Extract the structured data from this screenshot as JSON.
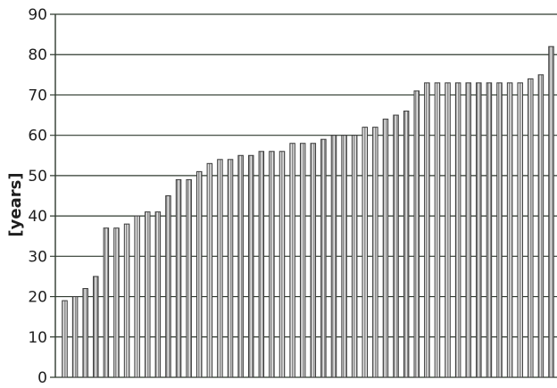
{
  "chart_data": {
    "type": "bar",
    "title": "",
    "xlabel": "",
    "ylabel": "[years]",
    "ylim": [
      0,
      90
    ],
    "yticks": [
      0,
      10,
      20,
      30,
      40,
      50,
      60,
      70,
      80,
      90
    ],
    "grid": true,
    "values": [
      19,
      20,
      22,
      25,
      37,
      37,
      38,
      40,
      41,
      41,
      45,
      49,
      49,
      51,
      53,
      54,
      54,
      55,
      55,
      56,
      56,
      56,
      58,
      58,
      58,
      59,
      60,
      60,
      60,
      62,
      62,
      64,
      65,
      66,
      71,
      73,
      73,
      73,
      73,
      73,
      73,
      73,
      73,
      73,
      73,
      74,
      75,
      82
    ]
  }
}
